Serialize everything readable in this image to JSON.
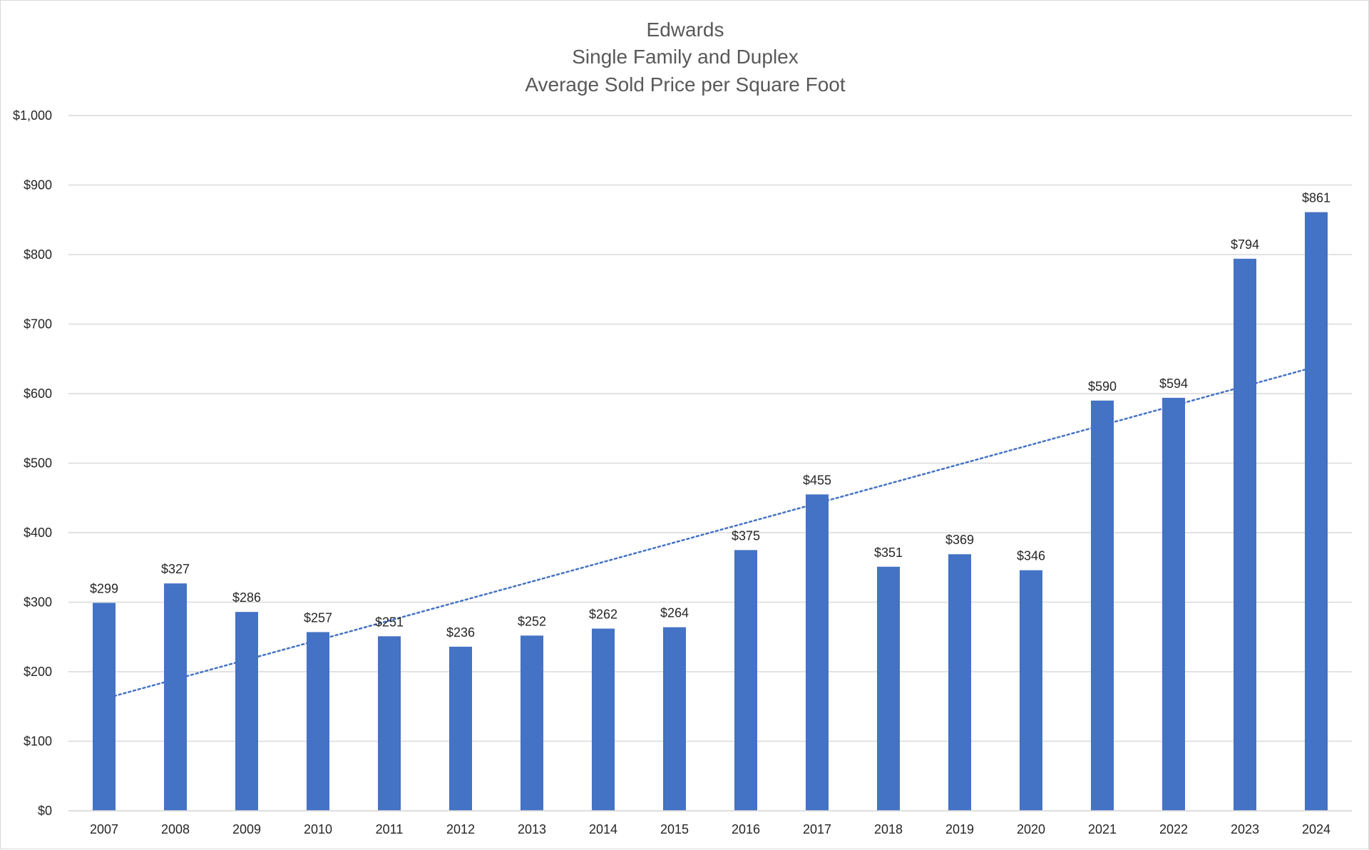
{
  "chart_data": {
    "type": "bar",
    "title": [
      "Edwards",
      "Single Family and Duplex",
      "Average Sold Price per Square Foot"
    ],
    "categories": [
      "2007",
      "2008",
      "2009",
      "2010",
      "2011",
      "2012",
      "2013",
      "2014",
      "2015",
      "2016",
      "2017",
      "2018",
      "2019",
      "2020",
      "2021",
      "2022",
      "2023",
      "2024"
    ],
    "series": [
      {
        "values": [
          299,
          327,
          286,
          257,
          251,
          236,
          252,
          262,
          264,
          375,
          455,
          351,
          369,
          346,
          590,
          594,
          794,
          861
        ],
        "data_labels": [
          "$299",
          "$327",
          "$286",
          "$257",
          "$251",
          "$236",
          "$252",
          "$262",
          "$264",
          "$375",
          "$455",
          "$351",
          "$369",
          "$346",
          "$590",
          "$594",
          "$794",
          "$861"
        ],
        "color": "#4472c4"
      }
    ],
    "trendline": {
      "type": "linear",
      "style": "dotted",
      "color": "#4472c4",
      "start": {
        "x": "2007",
        "y": 165
      },
      "end": {
        "x": "2024",
        "y": 635
      }
    },
    "y_ticks": [
      0,
      100,
      200,
      300,
      400,
      500,
      600,
      700,
      800,
      900,
      1000
    ],
    "y_tick_labels": [
      "$0",
      "$100",
      "$200",
      "$300",
      "$400",
      "$500",
      "$600",
      "$700",
      "$800",
      "$900",
      "$1,000"
    ],
    "ylim": [
      0,
      1000
    ],
    "xlabel": "",
    "ylabel": "",
    "grid": true,
    "gridline_color": "#d9d9d9",
    "legend": "none"
  }
}
